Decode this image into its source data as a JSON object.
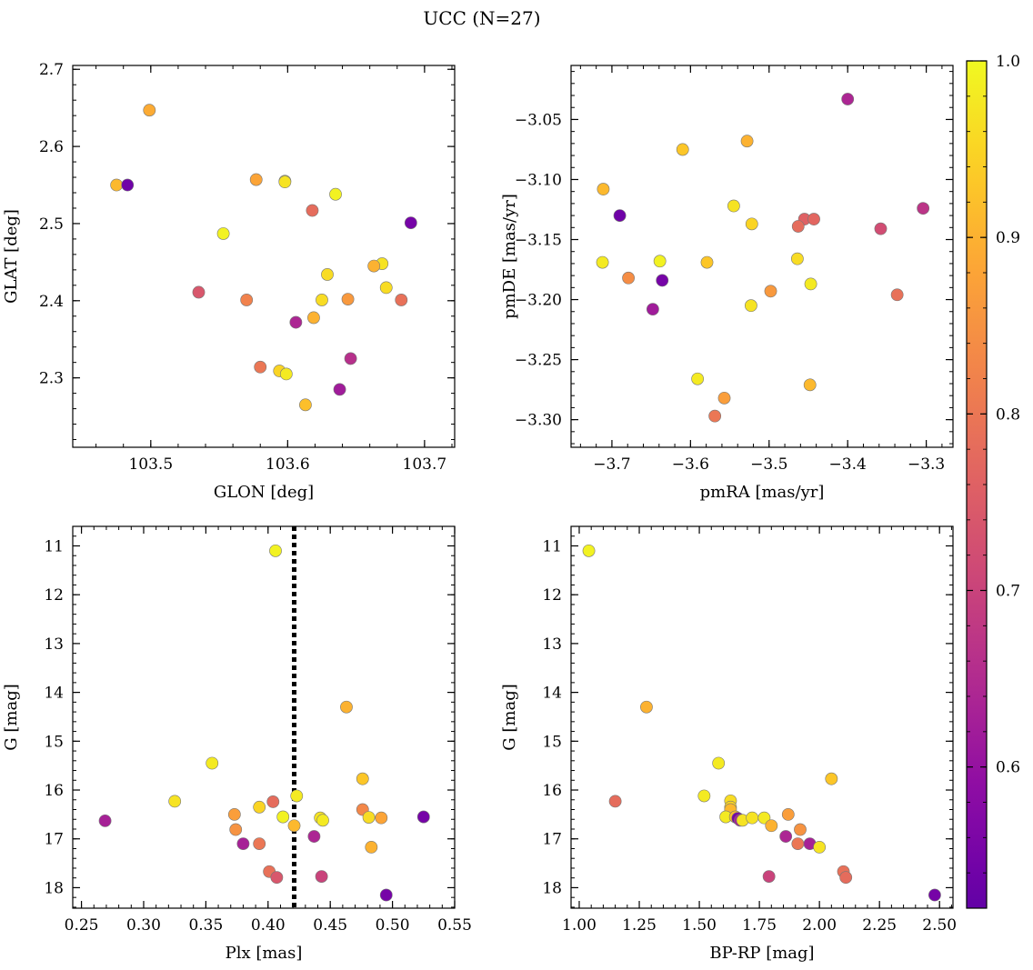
{
  "figure": {
    "title": "UCC (N=27)"
  },
  "colorbar": {
    "min": 0.52,
    "max": 1.0,
    "ticks": [
      0.6,
      0.7,
      0.8,
      0.9,
      1.0
    ],
    "tick_labels": [
      "0.6",
      "0.7",
      "0.8",
      "0.9",
      "1.0"
    ],
    "colormap": "plasma"
  },
  "chart_data": [
    {
      "type": "scatter",
      "xlabel": "GLON [deg]",
      "ylabel": "GLAT [deg]",
      "xlim": [
        103.443,
        103.722
      ],
      "ylim": [
        2.21,
        2.705
      ],
      "xticks": [
        103.5,
        103.6,
        103.7
      ],
      "xtick_labels": [
        "103.5",
        "103.6",
        "103.7"
      ],
      "yticks": [
        2.3,
        2.4,
        2.5,
        2.6,
        2.7
      ],
      "ytick_labels": [
        "2.3",
        "2.4",
        "2.5",
        "2.6",
        "2.7"
      ],
      "points": [
        {
          "x": 103.499,
          "y": 2.647,
          "c": 0.89
        },
        {
          "x": 103.475,
          "y": 2.55,
          "c": 0.91
        },
        {
          "x": 103.483,
          "y": 2.55,
          "c": 0.54
        },
        {
          "x": 103.577,
          "y": 2.557,
          "c": 0.88
        },
        {
          "x": 103.598,
          "y": 2.555,
          "c": 0.98
        },
        {
          "x": 103.598,
          "y": 2.554,
          "c": 0.97
        },
        {
          "x": 103.635,
          "y": 2.538,
          "c": 0.99
        },
        {
          "x": 103.618,
          "y": 2.517,
          "c": 0.78
        },
        {
          "x": 103.69,
          "y": 2.501,
          "c": 0.55
        },
        {
          "x": 103.553,
          "y": 2.487,
          "c": 0.99
        },
        {
          "x": 103.629,
          "y": 2.434,
          "c": 0.96
        },
        {
          "x": 103.669,
          "y": 2.448,
          "c": 0.97
        },
        {
          "x": 103.663,
          "y": 2.445,
          "c": 0.9
        },
        {
          "x": 103.672,
          "y": 2.417,
          "c": 0.96
        },
        {
          "x": 103.535,
          "y": 2.411,
          "c": 0.74
        },
        {
          "x": 103.57,
          "y": 2.401,
          "c": 0.82
        },
        {
          "x": 103.625,
          "y": 2.401,
          "c": 0.96
        },
        {
          "x": 103.644,
          "y": 2.402,
          "c": 0.86
        },
        {
          "x": 103.683,
          "y": 2.401,
          "c": 0.79
        },
        {
          "x": 103.619,
          "y": 2.378,
          "c": 0.9
        },
        {
          "x": 103.606,
          "y": 2.372,
          "c": 0.64
        },
        {
          "x": 103.58,
          "y": 2.314,
          "c": 0.8
        },
        {
          "x": 103.594,
          "y": 2.309,
          "c": 0.95
        },
        {
          "x": 103.599,
          "y": 2.305,
          "c": 0.98
        },
        {
          "x": 103.646,
          "y": 2.325,
          "c": 0.66
        },
        {
          "x": 103.638,
          "y": 2.285,
          "c": 0.62
        },
        {
          "x": 103.613,
          "y": 2.265,
          "c": 0.92
        }
      ]
    },
    {
      "type": "scatter",
      "xlabel": "pmRA [mas/yr]",
      "ylabel": "pmDE [mas/yr]",
      "xlim": [
        -3.752,
        -3.266
      ],
      "ylim": [
        -3.323,
        -3.005
      ],
      "xticks": [
        -3.7,
        -3.6,
        -3.5,
        -3.4,
        -3.3
      ],
      "xtick_labels": [
        "−3.7",
        "−3.6",
        "−3.5",
        "−3.4",
        "−3.3"
      ],
      "yticks": [
        -3.3,
        -3.25,
        -3.2,
        -3.15,
        -3.1,
        -3.05
      ],
      "ytick_labels": [
        "−3.30",
        "−3.25",
        "−3.20",
        "−3.15",
        "−3.10",
        "−3.05"
      ],
      "points": [
        {
          "x": -3.4,
          "y": -3.033,
          "c": 0.64
        },
        {
          "x": -3.528,
          "y": -3.068,
          "c": 0.9
        },
        {
          "x": -3.61,
          "y": -3.075,
          "c": 0.93
        },
        {
          "x": -3.711,
          "y": -3.108,
          "c": 0.91
        },
        {
          "x": -3.545,
          "y": -3.122,
          "c": 0.97
        },
        {
          "x": -3.304,
          "y": -3.124,
          "c": 0.67
        },
        {
          "x": -3.69,
          "y": -3.13,
          "c": 0.54
        },
        {
          "x": -3.522,
          "y": -3.137,
          "c": 0.95
        },
        {
          "x": -3.455,
          "y": -3.133,
          "c": 0.76
        },
        {
          "x": -3.443,
          "y": -3.133,
          "c": 0.77
        },
        {
          "x": -3.463,
          "y": -3.139,
          "c": 0.78
        },
        {
          "x": -3.358,
          "y": -3.141,
          "c": 0.72
        },
        {
          "x": -3.712,
          "y": -3.169,
          "c": 0.98
        },
        {
          "x": -3.639,
          "y": -3.168,
          "c": 0.99
        },
        {
          "x": -3.579,
          "y": -3.169,
          "c": 0.93
        },
        {
          "x": -3.464,
          "y": -3.166,
          "c": 0.96
        },
        {
          "x": -3.679,
          "y": -3.182,
          "c": 0.84
        },
        {
          "x": -3.636,
          "y": -3.184,
          "c": 0.55
        },
        {
          "x": -3.447,
          "y": -3.187,
          "c": 0.98
        },
        {
          "x": -3.498,
          "y": -3.193,
          "c": 0.86
        },
        {
          "x": -3.337,
          "y": -3.196,
          "c": 0.79
        },
        {
          "x": -3.523,
          "y": -3.205,
          "c": 0.97
        },
        {
          "x": -3.648,
          "y": -3.208,
          "c": 0.62
        },
        {
          "x": -3.591,
          "y": -3.266,
          "c": 0.98
        },
        {
          "x": -3.557,
          "y": -3.282,
          "c": 0.87
        },
        {
          "x": -3.448,
          "y": -3.271,
          "c": 0.91
        },
        {
          "x": -3.569,
          "y": -3.297,
          "c": 0.8
        }
      ]
    },
    {
      "type": "scatter",
      "xlabel": "Plx [mas]",
      "ylabel": "G [mag]",
      "xlim": [
        0.243,
        0.55
      ],
      "ylim": [
        18.42,
        10.6
      ],
      "xticks": [
        0.25,
        0.3,
        0.35,
        0.4,
        0.45,
        0.5,
        0.55
      ],
      "xtick_labels": [
        "0.25",
        "0.30",
        "0.35",
        "0.40",
        "0.45",
        "0.50",
        "0.55"
      ],
      "yticks": [
        11,
        12,
        13,
        14,
        15,
        16,
        17,
        18
      ],
      "ytick_labels": [
        "11",
        "12",
        "13",
        "14",
        "15",
        "16",
        "17",
        "18"
      ],
      "vline": 0.421,
      "points": [
        {
          "x": 0.406,
          "y": 11.1,
          "c": 0.99
        },
        {
          "x": 0.463,
          "y": 14.3,
          "c": 0.9
        },
        {
          "x": 0.355,
          "y": 15.45,
          "c": 0.98
        },
        {
          "x": 0.476,
          "y": 15.77,
          "c": 0.93
        },
        {
          "x": 0.325,
          "y": 16.23,
          "c": 0.97
        },
        {
          "x": 0.404,
          "y": 16.24,
          "c": 0.78
        },
        {
          "x": 0.423,
          "y": 16.12,
          "c": 0.98
        },
        {
          "x": 0.393,
          "y": 16.35,
          "c": 0.95
        },
        {
          "x": 0.476,
          "y": 16.4,
          "c": 0.83
        },
        {
          "x": 0.373,
          "y": 16.5,
          "c": 0.87
        },
        {
          "x": 0.412,
          "y": 16.55,
          "c": 0.99
        },
        {
          "x": 0.442,
          "y": 16.57,
          "c": 0.97
        },
        {
          "x": 0.444,
          "y": 16.62,
          "c": 0.98
        },
        {
          "x": 0.481,
          "y": 16.56,
          "c": 0.96
        },
        {
          "x": 0.491,
          "y": 16.57,
          "c": 0.88
        },
        {
          "x": 0.525,
          "y": 16.55,
          "c": 0.55
        },
        {
          "x": 0.269,
          "y": 16.63,
          "c": 0.63
        },
        {
          "x": 0.421,
          "y": 16.73,
          "c": 0.91
        },
        {
          "x": 0.374,
          "y": 16.81,
          "c": 0.85
        },
        {
          "x": 0.437,
          "y": 16.95,
          "c": 0.64
        },
        {
          "x": 0.38,
          "y": 17.1,
          "c": 0.63
        },
        {
          "x": 0.393,
          "y": 17.1,
          "c": 0.8
        },
        {
          "x": 0.483,
          "y": 17.17,
          "c": 0.9
        },
        {
          "x": 0.401,
          "y": 17.67,
          "c": 0.79
        },
        {
          "x": 0.407,
          "y": 17.79,
          "c": 0.74
        },
        {
          "x": 0.443,
          "y": 17.77,
          "c": 0.7
        },
        {
          "x": 0.495,
          "y": 18.15,
          "c": 0.55
        }
      ]
    },
    {
      "type": "scatter",
      "xlabel": "BP-RP [mag]",
      "ylabel": "G [mag]",
      "xlim": [
        0.966,
        2.556
      ],
      "ylim": [
        18.42,
        10.6
      ],
      "xticks": [
        1.0,
        1.25,
        1.5,
        1.75,
        2.0,
        2.25,
        2.5
      ],
      "xtick_labels": [
        "1.00",
        "1.25",
        "1.50",
        "1.75",
        "2.00",
        "2.25",
        "2.50"
      ],
      "yticks": [
        11,
        12,
        13,
        14,
        15,
        16,
        17,
        18
      ],
      "ytick_labels": [
        "11",
        "12",
        "13",
        "14",
        "15",
        "16",
        "17",
        "18"
      ],
      "points": [
        {
          "x": 1.04,
          "y": 11.1,
          "c": 0.99
        },
        {
          "x": 1.28,
          "y": 14.3,
          "c": 0.9
        },
        {
          "x": 1.58,
          "y": 15.45,
          "c": 0.98
        },
        {
          "x": 2.05,
          "y": 15.77,
          "c": 0.93
        },
        {
          "x": 1.15,
          "y": 16.23,
          "c": 0.78
        },
        {
          "x": 1.52,
          "y": 16.12,
          "c": 0.98
        },
        {
          "x": 1.63,
          "y": 16.22,
          "c": 0.96
        },
        {
          "x": 1.63,
          "y": 16.35,
          "c": 0.95
        },
        {
          "x": 1.63,
          "y": 16.4,
          "c": 0.91
        },
        {
          "x": 1.61,
          "y": 16.55,
          "c": 0.98
        },
        {
          "x": 1.65,
          "y": 16.55,
          "c": 0.92
        },
        {
          "x": 1.66,
          "y": 16.58,
          "c": 0.55
        },
        {
          "x": 1.67,
          "y": 16.62,
          "c": 0.63
        },
        {
          "x": 1.68,
          "y": 16.62,
          "c": 0.97
        },
        {
          "x": 1.72,
          "y": 16.57,
          "c": 0.97
        },
        {
          "x": 1.77,
          "y": 16.57,
          "c": 0.98
        },
        {
          "x": 1.87,
          "y": 16.5,
          "c": 0.87
        },
        {
          "x": 1.8,
          "y": 16.73,
          "c": 0.9
        },
        {
          "x": 1.92,
          "y": 16.81,
          "c": 0.85
        },
        {
          "x": 1.86,
          "y": 16.95,
          "c": 0.64
        },
        {
          "x": 1.91,
          "y": 17.1,
          "c": 0.8
        },
        {
          "x": 1.96,
          "y": 17.1,
          "c": 0.63
        },
        {
          "x": 2.0,
          "y": 17.17,
          "c": 0.97
        },
        {
          "x": 2.1,
          "y": 17.67,
          "c": 0.79
        },
        {
          "x": 2.11,
          "y": 17.79,
          "c": 0.78
        },
        {
          "x": 1.79,
          "y": 17.77,
          "c": 0.7
        },
        {
          "x": 2.48,
          "y": 18.15,
          "c": 0.55
        }
      ]
    }
  ]
}
